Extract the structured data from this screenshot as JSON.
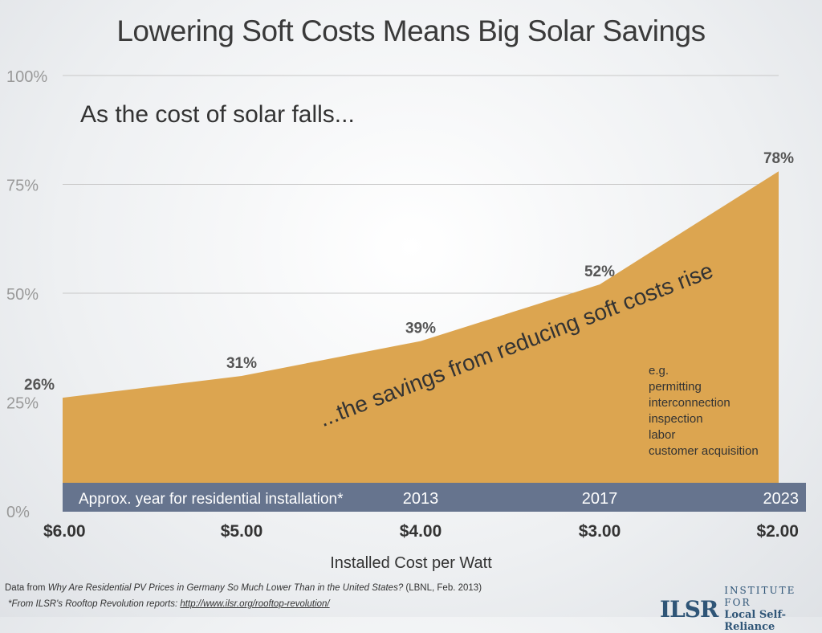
{
  "title": "Lowering Soft Costs Means Big Solar Savings",
  "subtitle": "As the cost of solar falls...",
  "overlay_text": "...the savings from reducing soft costs rise",
  "examples": [
    "e.g.",
    "permitting",
    "interconnection",
    "inspection",
    "labor",
    "customer acquisition"
  ],
  "band": {
    "label": "Approx. year for residential installation*",
    "years": [
      "",
      "",
      "2013",
      "2017",
      "2023"
    ],
    "color": "#66748e"
  },
  "footnotes": {
    "source_prefix": "Data from ",
    "source_title": "Why Are Residential PV Prices in Germany So Much Lower Than in the United States?",
    "source_suffix": " (LBNL, Feb. 2013)",
    "note": "*From ILSR's Rooftop Revolution reports: ",
    "link": "http://www.ilsr.org/rooftop-revolution/"
  },
  "logo": {
    "mark": "ILSR",
    "line1": "INSTITUTE FOR",
    "line2": "Local Self-Reliance"
  },
  "chart_data": {
    "type": "area",
    "title": "Lowering Soft Costs Means Big Solar Savings",
    "xlabel": "Installed Cost per Watt",
    "ylabel": "",
    "categories": [
      "$6.00",
      "$5.00",
      "$4.00",
      "$3.00",
      "$2.00"
    ],
    "values": [
      26,
      31,
      39,
      52,
      78
    ],
    "data_labels": [
      "26%",
      "31%",
      "39%",
      "52%",
      "78%"
    ],
    "ylim": [
      0,
      100
    ],
    "yticks": [
      "0%",
      "25%",
      "50%",
      "75%",
      "100%"
    ],
    "ytick_values": [
      0,
      25,
      50,
      75,
      100
    ],
    "grid": true,
    "fill_color": "#dca550"
  }
}
